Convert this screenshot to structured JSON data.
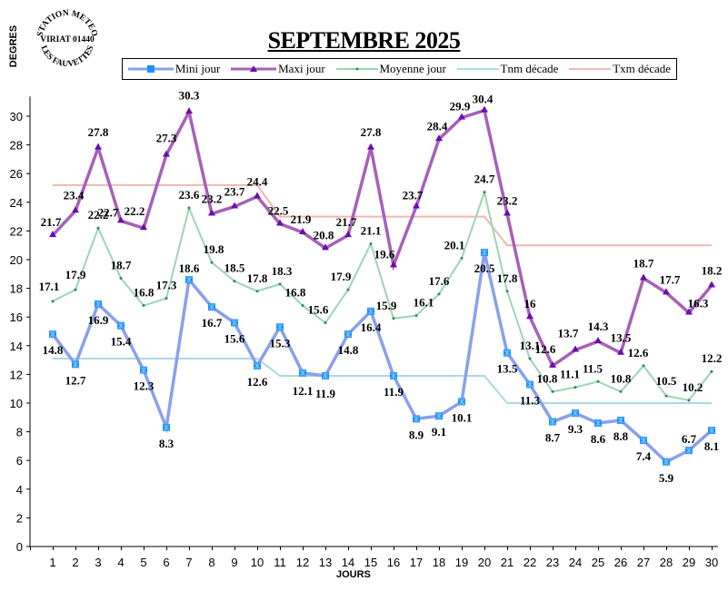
{
  "header": {
    "title": "SEPTEMBRE 2025",
    "stamp_top": "STATION METEO",
    "stamp_middle": "VIRIAT 01440",
    "stamp_bottom": "LES FAUVETTES"
  },
  "legend": {
    "items": [
      {
        "label": "Mini jour",
        "color": "#8aa0ec",
        "marker": "#1e90ff"
      },
      {
        "label": "Maxi jour",
        "color": "#a661b8",
        "marker": "#6a0dad"
      },
      {
        "label": "Moyenne jour",
        "color": "#9ed4b4",
        "marker": "#2e8b57"
      },
      {
        "label": "Tnm  décade",
        "color": "#add8e6"
      },
      {
        "label": "Txm  décade",
        "color": "#f4b6b0"
      }
    ]
  },
  "chart_data": {
    "type": "line",
    "title": "SEPTEMBRE 2025",
    "xlabel": "JOURS",
    "ylabel": "DEGRES",
    "ylim": [
      0,
      31
    ],
    "yticks": [
      0,
      2,
      4,
      6,
      8,
      10,
      12,
      14,
      16,
      18,
      20,
      22,
      24,
      26,
      28,
      30
    ],
    "grid": false,
    "legend_position": "top",
    "categories": [
      1,
      2,
      3,
      4,
      5,
      6,
      7,
      8,
      9,
      10,
      11,
      12,
      13,
      14,
      15,
      16,
      17,
      18,
      19,
      20,
      21,
      22,
      23,
      24,
      25,
      26,
      27,
      28,
      29,
      30
    ],
    "series": [
      {
        "name": "Mini jour",
        "values": [
          14.8,
          12.7,
          16.9,
          15.4,
          12.3,
          8.3,
          18.6,
          16.7,
          15.6,
          12.6,
          15.3,
          12.1,
          11.9,
          14.8,
          16.4,
          11.9,
          8.9,
          9.1,
          10.1,
          20.5,
          13.5,
          11.3,
          8.7,
          9.3,
          8.6,
          8.8,
          7.4,
          5.9,
          6.7,
          8.1
        ]
      },
      {
        "name": "Maxi jour",
        "values": [
          21.7,
          23.4,
          27.8,
          22.7,
          22.2,
          27.3,
          30.3,
          23.2,
          23.7,
          24.4,
          22.5,
          21.9,
          20.8,
          21.7,
          27.8,
          19.6,
          23.7,
          28.4,
          29.9,
          30.4,
          23.2,
          16,
          12.6,
          13.7,
          14.3,
          13.5,
          18.7,
          17.7,
          16.3,
          18.2
        ]
      },
      {
        "name": "Moyenne jour",
        "values": [
          17.1,
          17.9,
          22.2,
          18.7,
          16.8,
          17.3,
          23.6,
          19.8,
          18.5,
          17.8,
          18.3,
          16.8,
          15.6,
          17.9,
          21.1,
          15.9,
          16.1,
          17.6,
          20.1,
          24.7,
          17.8,
          13.1,
          10.8,
          11.1,
          11.5,
          10.8,
          12.6,
          10.5,
          10.2,
          12.2
        ]
      },
      {
        "name": "Tnm décade",
        "values": [
          13.1,
          13.1,
          13.1,
          13.1,
          13.1,
          13.1,
          13.1,
          13.1,
          13.1,
          13.1,
          11.9,
          11.9,
          11.9,
          11.9,
          11.9,
          11.9,
          11.9,
          11.9,
          11.9,
          11.9,
          10.0,
          10.0,
          10.0,
          10.0,
          10.0,
          10.0,
          10.0,
          10.0,
          10.0,
          10.0
        ]
      },
      {
        "name": "Txm décade",
        "values": [
          25.2,
          25.2,
          25.2,
          25.2,
          25.2,
          25.2,
          25.2,
          25.2,
          25.2,
          25.2,
          23.0,
          23.0,
          23.0,
          23.0,
          23.0,
          23.0,
          23.0,
          23.0,
          23.0,
          23.0,
          21.0,
          21.0,
          21.0,
          21.0,
          21.0,
          21.0,
          21.0,
          21.0,
          21.0,
          21.0
        ]
      }
    ]
  }
}
